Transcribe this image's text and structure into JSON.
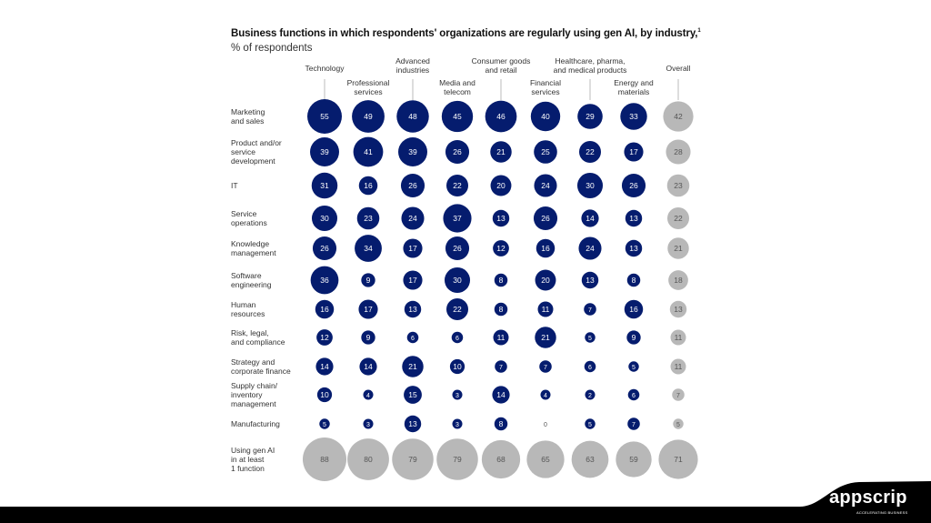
{
  "chart_data": {
    "type": "bubble-matrix",
    "title": "Business functions in which respondents' organizations are regularly using gen AI, by industry,",
    "title_footnote": "1",
    "subtitle": "% of respondents",
    "columns": [
      "Technology",
      "Professional services",
      "Advanced industries",
      "Media and telecom",
      "Consumer goods and retail",
      "Financial services",
      "Healthcare, pharma, and medical products",
      "Energy and materials",
      "Overall"
    ],
    "column_label_lines": [
      [
        "Technology"
      ],
      [
        "Professional",
        "services"
      ],
      [
        "Advanced",
        "industries"
      ],
      [
        "Media and",
        "telecom"
      ],
      [
        "Consumer goods",
        "and retail"
      ],
      [
        "Financial",
        "services"
      ],
      [
        "Healthcare, pharma,",
        "and medical products"
      ],
      [
        "Energy and",
        "materials"
      ],
      [
        "Overall"
      ]
    ],
    "rows": [
      {
        "label": [
          "Marketing",
          "and sales"
        ],
        "values": [
          55,
          49,
          48,
          45,
          46,
          40,
          29,
          33,
          42
        ]
      },
      {
        "label": [
          "Product and/or",
          "service",
          "development"
        ],
        "values": [
          39,
          41,
          39,
          26,
          21,
          25,
          22,
          17,
          28
        ]
      },
      {
        "label": [
          "IT"
        ],
        "values": [
          31,
          16,
          26,
          22,
          20,
          24,
          30,
          26,
          23
        ]
      },
      {
        "label": [
          "Service",
          "operations"
        ],
        "values": [
          30,
          23,
          24,
          37,
          13,
          26,
          14,
          13,
          22
        ]
      },
      {
        "label": [
          "Knowledge",
          "management"
        ],
        "values": [
          26,
          34,
          17,
          26,
          12,
          16,
          24,
          13,
          21
        ]
      },
      {
        "label": [
          "Software",
          "engineering"
        ],
        "values": [
          36,
          9,
          17,
          30,
          8,
          20,
          13,
          8,
          18
        ]
      },
      {
        "label": [
          "Human",
          "resources"
        ],
        "values": [
          16,
          17,
          13,
          22,
          8,
          11,
          7,
          16,
          13
        ]
      },
      {
        "label": [
          "Risk, legal,",
          "and compliance"
        ],
        "values": [
          12,
          9,
          6,
          6,
          11,
          21,
          5,
          9,
          11
        ]
      },
      {
        "label": [
          "Strategy and",
          "corporate finance"
        ],
        "values": [
          14,
          14,
          21,
          10,
          7,
          7,
          6,
          5,
          11
        ]
      },
      {
        "label": [
          "Supply chain/",
          "inventory",
          "management"
        ],
        "values": [
          10,
          4,
          15,
          3,
          14,
          4,
          2,
          6,
          7
        ]
      },
      {
        "label": [
          "Manufacturing"
        ],
        "values": [
          5,
          3,
          13,
          3,
          8,
          0,
          5,
          7,
          5
        ]
      },
      {
        "label": [
          "Using gen AI",
          "in at least",
          "1 function"
        ],
        "values": [
          88,
          80,
          79,
          79,
          68,
          65,
          63,
          59,
          71
        ],
        "summary": true
      }
    ],
    "colors": {
      "industry": "#051c6e",
      "overall": "#b8b8b8",
      "text_light": "#ffffff",
      "text_dark": "#555555"
    }
  },
  "branding": {
    "logo": "appscrip",
    "tagline": "ACCELERATING BUSINESS"
  }
}
